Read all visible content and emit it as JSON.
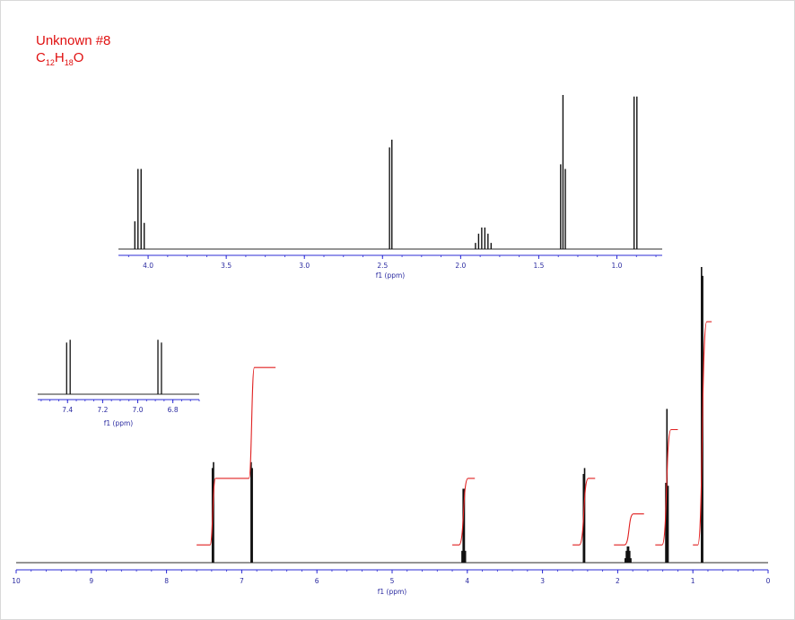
{
  "title_line1": "Unknown #8",
  "formula": {
    "c": "C",
    "c_n": "12",
    "h": "H",
    "h_n": "18",
    "o": "O"
  },
  "colors": {
    "title": "#e01010",
    "axis": "#2b2bd6",
    "spectrum": "#111111",
    "integral": "#e02020",
    "baseline": "#555555"
  },
  "chart_data": [
    {
      "type": "line",
      "name": "full-spectrum",
      "xlabel": "f1 (ppm)",
      "xlim": [
        10,
        0
      ],
      "reversed_x": true,
      "ticks": [
        "10",
        "9",
        "8",
        "7",
        "6",
        "5",
        "4",
        "3",
        "2",
        "1",
        "0"
      ],
      "peaks": [
        {
          "ppm": 7.39,
          "h": 0.32
        },
        {
          "ppm": 7.375,
          "h": 0.34
        },
        {
          "ppm": 6.875,
          "h": 0.34
        },
        {
          "ppm": 6.86,
          "h": 0.32
        },
        {
          "ppm": 4.07,
          "h": 0.04
        },
        {
          "ppm": 4.055,
          "h": 0.25
        },
        {
          "ppm": 4.04,
          "h": 0.25
        },
        {
          "ppm": 4.025,
          "h": 0.04
        },
        {
          "ppm": 2.455,
          "h": 0.3
        },
        {
          "ppm": 2.44,
          "h": 0.32
        },
        {
          "ppm": 1.9,
          "h": 0.015
        },
        {
          "ppm": 1.885,
          "h": 0.04
        },
        {
          "ppm": 1.87,
          "h": 0.055
        },
        {
          "ppm": 1.855,
          "h": 0.055
        },
        {
          "ppm": 1.84,
          "h": 0.04
        },
        {
          "ppm": 1.825,
          "h": 0.015
        },
        {
          "ppm": 1.36,
          "h": 0.27
        },
        {
          "ppm": 1.345,
          "h": 0.52
        },
        {
          "ppm": 1.33,
          "h": 0.26
        },
        {
          "ppm": 0.885,
          "h": 1.0
        },
        {
          "ppm": 0.87,
          "h": 0.97
        }
      ],
      "integrals": [
        {
          "from": 7.6,
          "to": 6.55,
          "y_start": 0.06,
          "y_mid": 0.285,
          "y_end": 0.66,
          "split_ppm": 6.99
        },
        {
          "from": 4.2,
          "to": 3.9,
          "y_start": 0.06,
          "y_end": 0.285
        },
        {
          "from": 2.6,
          "to": 2.3,
          "y_start": 0.06,
          "y_end": 0.285
        },
        {
          "from": 2.05,
          "to": 1.65,
          "y_start": 0.06,
          "y_end": 0.165
        },
        {
          "from": 1.5,
          "to": 1.2,
          "y_start": 0.06,
          "y_end": 0.45
        },
        {
          "from": 1.0,
          "to": 0.75,
          "y_start": 0.06,
          "y_end": 0.815
        }
      ]
    },
    {
      "type": "line",
      "name": "inset-upfield",
      "xlabel": "f1 (ppm)",
      "xlim": [
        4.19,
        0.71
      ],
      "reversed_x": true,
      "ticks": [
        "4.0",
        "3.5",
        "3.0",
        "2.5",
        "2.0",
        "1.5",
        "1.0"
      ],
      "peaks": [
        {
          "ppm": 4.085,
          "h": 0.18
        },
        {
          "ppm": 4.065,
          "h": 0.52
        },
        {
          "ppm": 4.045,
          "h": 0.52
        },
        {
          "ppm": 4.025,
          "h": 0.17
        },
        {
          "ppm": 2.455,
          "h": 0.66
        },
        {
          "ppm": 2.44,
          "h": 0.71
        },
        {
          "ppm": 1.905,
          "h": 0.04
        },
        {
          "ppm": 1.885,
          "h": 0.1
        },
        {
          "ppm": 1.865,
          "h": 0.14
        },
        {
          "ppm": 1.845,
          "h": 0.14
        },
        {
          "ppm": 1.825,
          "h": 0.1
        },
        {
          "ppm": 1.805,
          "h": 0.04
        },
        {
          "ppm": 1.36,
          "h": 0.55
        },
        {
          "ppm": 1.345,
          "h": 1.0
        },
        {
          "ppm": 1.33,
          "h": 0.52
        },
        {
          "ppm": 0.89,
          "h": 0.99
        },
        {
          "ppm": 0.872,
          "h": 0.99
        }
      ]
    },
    {
      "type": "line",
      "name": "inset-aromatic",
      "xlabel": "f1 (ppm)",
      "xlim": [
        7.57,
        6.65
      ],
      "reversed_x": true,
      "ticks": [
        "7.4",
        "7.2",
        "7.0",
        "6.8"
      ],
      "peaks": [
        {
          "ppm": 7.405,
          "h": 0.93
        },
        {
          "ppm": 7.385,
          "h": 0.98
        },
        {
          "ppm": 6.885,
          "h": 0.98
        },
        {
          "ppm": 6.865,
          "h": 0.93
        }
      ]
    }
  ]
}
